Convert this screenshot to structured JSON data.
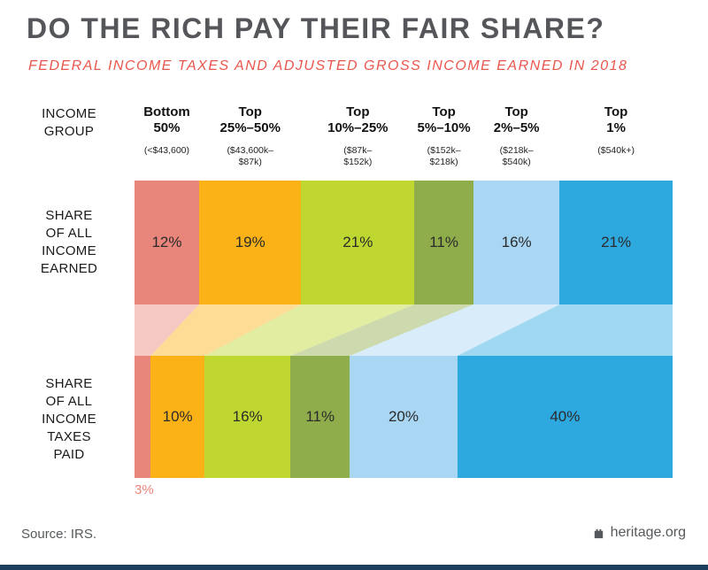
{
  "title": "DO THE RICH PAY THEIR FAIR SHARE?",
  "subtitle": "FEDERAL INCOME TAXES AND ADJUSTED GROSS INCOME EARNED IN 2018",
  "row_labels": {
    "income_group": "INCOME\nGROUP",
    "income_earned": "SHARE\nOF ALL\nINCOME\nEARNED",
    "taxes_paid": "SHARE\nOF ALL\nINCOME\nTAXES\nPAID"
  },
  "footer": {
    "source": "Source: IRS.",
    "brand": "heritage.org"
  },
  "accent_colors": {
    "title_gray": "#54565A",
    "subtitle_red": "#E8574D",
    "footer_gray": "#56595B",
    "bottom_strip_navy": "#1C3F5E"
  },
  "chart_data": {
    "type": "bar",
    "subtype": "100% stacked horizontal bars with flow connectors",
    "title": "DO THE RICH PAY THEIR FAIR SHARE?",
    "subtitle": "FEDERAL INCOME TAXES AND ADJUSTED GROSS INCOME EARNED IN 2018",
    "unit": "%",
    "categories": [
      "Bottom 50%",
      "Top 25%–50%",
      "Top 10%–25%",
      "Top 5%–10%",
      "Top 2%–5%",
      "Top 1%"
    ],
    "category_labels": [
      "Bottom\n50%",
      "Top\n25%–50%",
      "Top\n10%–25%",
      "Top\n5%–10%",
      "Top\n2%–5%",
      "Top\n1%"
    ],
    "category_ranges": [
      "(<$43,600)",
      "($43,600k–\n$87k)",
      "($87k–\n$152k)",
      "($152k–\n$218k)",
      "($218k–\n$540k)",
      "($540k+)"
    ],
    "series": [
      {
        "name": "SHARE OF ALL INCOME EARNED",
        "values": [
          12,
          19,
          21,
          11,
          16,
          21
        ]
      },
      {
        "name": "SHARE OF ALL INCOME TAXES PAID",
        "values": [
          3,
          10,
          16,
          11,
          20,
          40
        ]
      }
    ],
    "colors": [
      "#E9867B",
      "#FBB217",
      "#BFD730",
      "#8FAD4B",
      "#A9D6F2",
      "#2EA9E0"
    ],
    "flow_opacity": 0.45,
    "source": "Source: IRS."
  }
}
